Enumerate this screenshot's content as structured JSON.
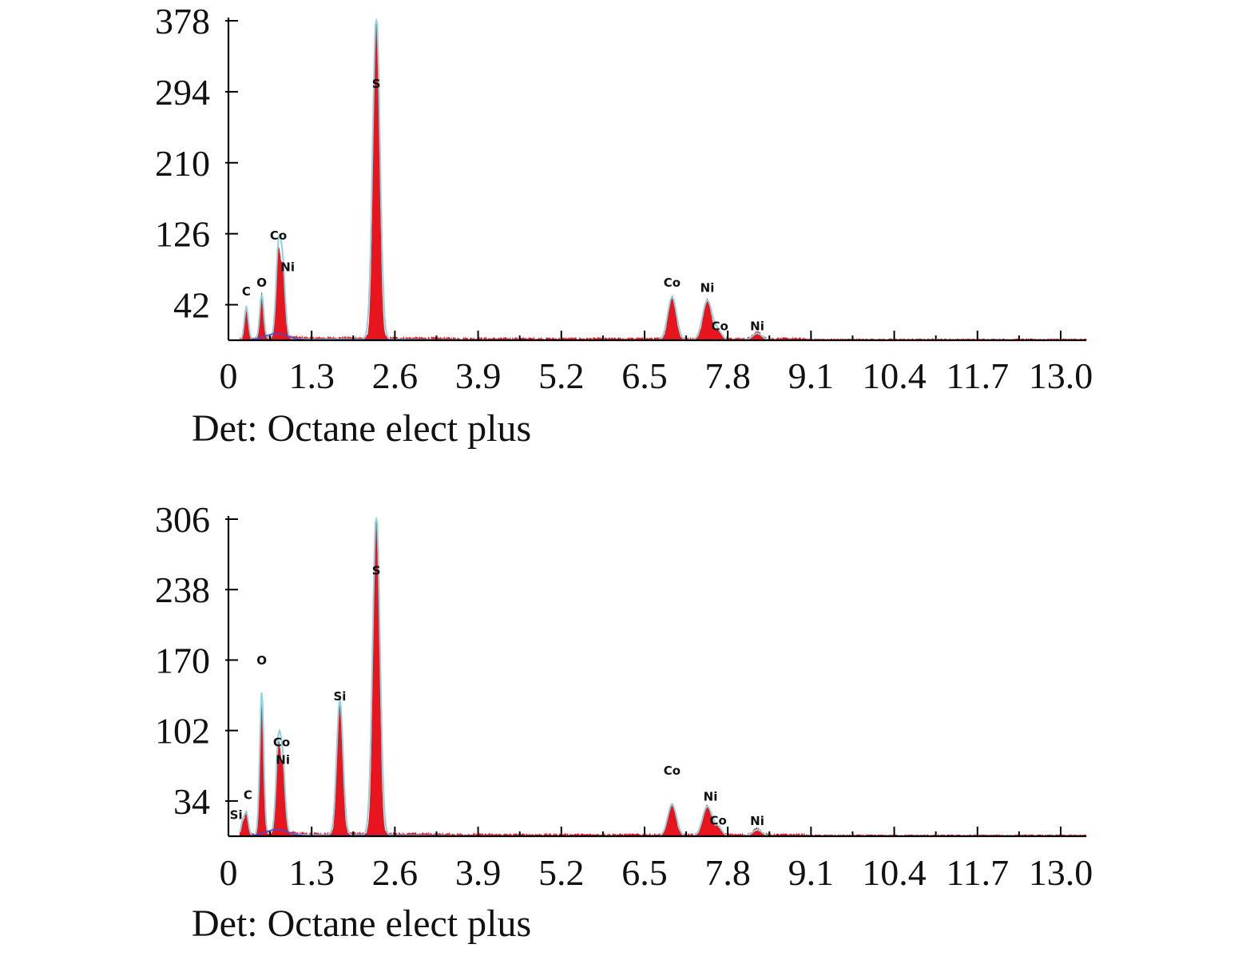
{
  "chart_data": [
    {
      "type": "area",
      "xlabel": "",
      "ylabel": "",
      "footer": "Det: Octane elect plus",
      "xlim": [
        0,
        13.4
      ],
      "ylim": [
        0,
        378
      ],
      "x_ticks": [
        "0",
        "1.3",
        "2.6",
        "3.9",
        "5.2",
        "6.5",
        "7.8",
        "9.1",
        "10.4",
        "11.7",
        "13.0"
      ],
      "y_ticks": [
        42,
        126,
        210,
        294,
        378
      ],
      "y_tick_labels": [
        "42",
        "126",
        "210",
        "294",
        "378"
      ],
      "colors": {
        "spectrum": "#e8141e",
        "fit": "#8fd3df",
        "background": "#4a4ad0"
      },
      "peaks": [
        {
          "label": "C",
          "x": 0.28,
          "y": 38,
          "width": 0.025
        },
        {
          "label": "O",
          "x": 0.52,
          "y": 52,
          "width": 0.025
        },
        {
          "label": "Co",
          "x": 0.78,
          "y": 100,
          "width": 0.03
        },
        {
          "label": "Ni",
          "x": 0.85,
          "y": 78,
          "width": 0.03
        },
        {
          "label": "S",
          "x": 2.31,
          "y": 378,
          "width": 0.045
        },
        {
          "label": "Co",
          "x": 6.93,
          "y": 50,
          "width": 0.055
        },
        {
          "label": "Ni",
          "x": 7.48,
          "y": 46,
          "width": 0.06
        },
        {
          "label": "Co",
          "x": 7.65,
          "y": 10,
          "width": 0.05
        },
        {
          "label": "Ni",
          "x": 8.26,
          "y": 8,
          "width": 0.06
        }
      ]
    },
    {
      "type": "area",
      "xlabel": "",
      "ylabel": "",
      "footer": "Det: Octane elect plus",
      "xlim": [
        0,
        13.4
      ],
      "ylim": [
        0,
        306
      ],
      "x_ticks": [
        "0",
        "1.3",
        "2.6",
        "3.9",
        "5.2",
        "6.5",
        "7.8",
        "9.1",
        "10.4",
        "11.7",
        "13.0"
      ],
      "y_ticks": [
        34,
        102,
        170,
        238,
        306
      ],
      "y_tick_labels": [
        "34",
        "102",
        "170",
        "238",
        "306"
      ],
      "colors": {
        "spectrum": "#e8141e",
        "fit": "#8fd3df",
        "background": "#4a4ad0"
      },
      "peaks": [
        {
          "label": "Si",
          "x": 0.22,
          "y": 12,
          "width": 0.02
        },
        {
          "label": "C",
          "x": 0.28,
          "y": 22,
          "width": 0.025
        },
        {
          "label": "O",
          "x": 0.52,
          "y": 135,
          "width": 0.025
        },
        {
          "label": "Co",
          "x": 0.78,
          "y": 82,
          "width": 0.03
        },
        {
          "label": "Ni",
          "x": 0.85,
          "y": 62,
          "width": 0.03
        },
        {
          "label": "Si",
          "x": 1.74,
          "y": 128,
          "width": 0.04
        },
        {
          "label": "S",
          "x": 2.31,
          "y": 306,
          "width": 0.045
        },
        {
          "label": "Co",
          "x": 6.93,
          "y": 30,
          "width": 0.055
        },
        {
          "label": "Ni",
          "x": 7.48,
          "y": 28,
          "width": 0.06
        },
        {
          "label": "Co",
          "x": 7.65,
          "y": 8,
          "width": 0.05
        },
        {
          "label": "Ni",
          "x": 8.26,
          "y": 6,
          "width": 0.06
        }
      ]
    }
  ]
}
